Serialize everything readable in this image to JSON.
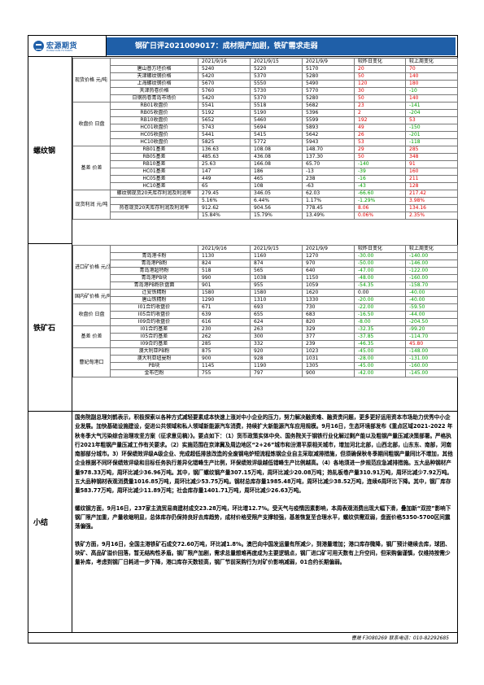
{
  "header": {
    "logo_text": "宏源期货",
    "logo_sub": "HONGYUAN FUTURES",
    "title": "钢矿日评2021009017：成材限产加剧，铁矿需求走弱"
  },
  "rebar": {
    "section_label": "螺纹钢",
    "groups": [
      {
        "category": "现货价格 元/吨",
        "header": [
          "",
          "2021/9/16",
          "2021/9/15",
          "2021/9/9",
          "较昨日变化",
          "较上周变化"
        ],
        "rows": [
          [
            "唐山普方坯价格",
            "5240",
            "5220",
            "5170",
            "20",
            "70"
          ],
          [
            "天津螺纹钢价格",
            "5420",
            "5370",
            "5280",
            "50",
            "140"
          ],
          [
            "上海螺纹钢价格",
            "5670",
            "5550",
            "5490",
            "120",
            "180"
          ],
          [
            "天津热卷价格",
            "5760",
            "5730",
            "5770",
            "30",
            "-10"
          ],
          [
            "日钢热卷青岛市场价",
            "5420",
            "5370",
            "5280",
            "50",
            "140"
          ]
        ]
      },
      {
        "category": "收盘价 日盘",
        "rows": [
          [
            "RB01收盘价",
            "5541",
            "5518",
            "5682",
            "23",
            "-141"
          ],
          [
            "RB05收盘价",
            "5192",
            "5190",
            "5396",
            "2",
            "-204"
          ],
          [
            "RB10收盘价",
            "5652",
            "5460",
            "5599",
            "192",
            "53"
          ],
          [
            "HC01收盘价",
            "5743",
            "5694",
            "5893",
            "49",
            "-150"
          ],
          [
            "HC05收盘价",
            "5441",
            "5415",
            "5642",
            "26",
            "-201"
          ],
          [
            "HC10收盘价",
            "5825",
            "5772",
            "5943",
            "53",
            "-118"
          ]
        ]
      },
      {
        "category": "基差 价差",
        "rows": [
          [
            "RB01基差",
            "136.63",
            "108.08",
            "148.70",
            "29",
            "285"
          ],
          [
            "RB05基差",
            "485.63",
            "436.08",
            "137.30",
            "50",
            "348"
          ],
          [
            "RB10基差",
            "25.63",
            "166.08",
            "65.70",
            "-140",
            "91"
          ],
          [
            "HC01基差",
            "147",
            "186",
            "-13",
            "-39",
            "160"
          ],
          [
            "HC05基差",
            "449",
            "465",
            "238",
            "-16",
            "211"
          ],
          [
            "HC10基差",
            "65",
            "108",
            "-63",
            "-43",
            "128"
          ]
        ]
      },
      {
        "category": "现货利润 元/吨",
        "rows": [
          [
            "螺纹钢现货20天库存利润及利润率",
            "279.45",
            "346.05",
            "62.03",
            "-66.60",
            "217.42"
          ],
          [
            "",
            "5.16%",
            "6.44%",
            "1.17%",
            "-1.29%",
            "3.98%"
          ],
          [
            "热卷现货20天库存利润及利润率",
            "912.62",
            "904.56",
            "778.45",
            "8.06",
            "134.16"
          ],
          [
            "",
            "15.84%",
            "15.79%",
            "13.49%",
            "0.06%",
            "2.35%"
          ]
        ]
      }
    ]
  },
  "ore": {
    "section_label": "铁矿石",
    "groups": [
      {
        "category": "进口矿价格 元/湿吨",
        "header": [
          "",
          "2021/9/16",
          "2021/9/15",
          "2021/9/9",
          "较昨日变化",
          "较上周变化"
        ],
        "rows": [
          [
            "青岛港卡粉",
            "1130",
            "1160",
            "1270",
            "-30.00",
            "-140.00"
          ],
          [
            "青岛港PB粉",
            "824",
            "874",
            "970",
            "-50.00",
            "-146.00"
          ],
          [
            "青岛港超特粉",
            "518",
            "565",
            "640",
            "-47.00",
            "-122.00"
          ],
          [
            "青岛港PB块",
            "990",
            "1038",
            "1150",
            "-48.00",
            "-160.00"
          ],
          [
            "青岛港PB粉折盘面",
            "901",
            "955",
            "1059",
            "-54.35",
            "-158.70"
          ]
        ]
      },
      {
        "category": "国内矿价格 元/吨",
        "rows": [
          [
            "迁安铁精粉",
            "1580",
            "1580",
            "1620",
            "0.00",
            "-40.00"
          ],
          [
            "唐山铁精粉",
            "1290",
            "1310",
            "1330",
            "-20.00",
            "-40.00"
          ]
        ]
      },
      {
        "category": "收盘价 日盘",
        "rows": [
          [
            "I01合约收盘价",
            "671",
            "693",
            "730",
            "-22.00",
            "-59.50"
          ],
          [
            "I05合约收盘价",
            "639",
            "655",
            "683",
            "-16.50",
            "-44.00"
          ],
          [
            "I09合约收盘价",
            "616",
            "624",
            "820",
            "-8.00",
            "-204.50"
          ]
        ]
      },
      {
        "category": "基差 价差",
        "rows": [
          [
            "I01合约基差",
            "230",
            "263",
            "329",
            "-32.35",
            "-99.20"
          ],
          [
            "I05合约基差",
            "262",
            "300",
            "377",
            "-37.85",
            "-114.70"
          ],
          [
            "I09合约基差",
            "285",
            "332",
            "239",
            "-46.35",
            "45.80"
          ]
        ]
      },
      {
        "category": "曹妃甸港口",
        "rows": [
          [
            "澳大利亚PB粉",
            "875",
            "920",
            "1023",
            "-45.00",
            "-148.00"
          ],
          [
            "澳大利亚纽曼粉",
            "900",
            "928",
            "1031",
            "-28.00",
            "-131.00"
          ],
          [
            "PB块",
            "1145",
            "1190",
            "1305",
            "-45.00",
            "-160.00"
          ],
          [
            "金布巴粉",
            "755",
            "797",
            "900",
            "-42.00",
            "-145.00"
          ]
        ]
      }
    ]
  },
  "summary": {
    "label": "小结",
    "paragraphs": [
      "国务院副总理刘鹤表示，积极探索以各种方式减轻要素成本快速上涨对中小企业的压力，努力解决融资难、融资贵问题，更多更好运用资本市场助力优秀中小企业发展。加快基础设施建设，促进公共领域和私人领域新能源汽车消费，持续扩大新能源汽车应用规模。9月16日，生态环境部发布《重点区域2021-2022 年秋冬季大气污染综合治理攻坚方案（征求意见稿）》。要点如下：（1）货币政策实体中央、国务院关于钢铁行业化解过剩产能以及粗钢产量压减决策部署。严格执行2021年粗钢产量压减工作有关要求。（2）实施范围在京津冀及周边地区“2+26”城市和汾渭平原相关城市，增加河北北部，山西北部，山东东、南部，河南南部部分城市。3）环保绩效评级A级企业、完成超低排放改造的全废钢电炉短流程炼钢企业自主采取减排措施，但须确保秋冬季期间粗钢产量同比不增加，其他企业根据不同环保绩效评级和目标任务执行差异化错峰生产比例，环保绩效评级越低错峰生产比例越高。（4）各地须进一步规范应急减排措施。五大品种钢材产量978.33万吨，周环比减少36.96万吨。其中，钢厂螺纹钢产量307.15万吨，周环比减少20.08万吨；热轧板卷产量310.91万吨，周环比减少7.92万吨。五大品种钢材表观消费量1016.85万吨，周环比减少53.75万吨。钢材总库存量1985.48万吨，周环比减少38.52万吨，连续6周环比下降。其中，钢厂库存量583.77万吨，周环比减少11.89万吨；社会库存量1401.71万吨，周环比减少26.63万吨。",
      "螺纹钢方面，9月16日，237家主流贸易商建材成交23.28万吨，环比增12.7%。受天气与疫情因素影响，本周表观消费出现大幅下滑，叠加新“双控”影响下钢厂限产加重，产量收缩明显，总体库存仍保持良好去库趋势，成材价格受限产支撑较强，基差恢复至合理水平，螺纹供需双弱，盘面价格5350-5700区间震荡偏强。",
      "铁矿方面，9月16日，全国主港铁矿石成交72.60万吨，环比减1.8%。澳巴向中国发运量有所减少，到港量增加；港口库存微降，钢厂预计继续去库，球团、块矿、高品矿溢价回落，暂无结构性矛盾。钢厂限产加剧，需求总量想难再度成为主要逻辑点，钢厂进口矿可用天数有上升空间，但采购偏谨慎，仅维持按需少量补库，考虑到钢厂日耗进一步下降，港口库存天数较高，钢厂节前采购行为对矿价影响减弱，01合约长期偏弱。"
    ]
  },
  "footer": {
    "text": "曹晟  F3080269  联系电话：010-82292685"
  },
  "colors": {
    "brand": "#1f5fa8",
    "up": "#e00000",
    "down": "#00a000"
  }
}
